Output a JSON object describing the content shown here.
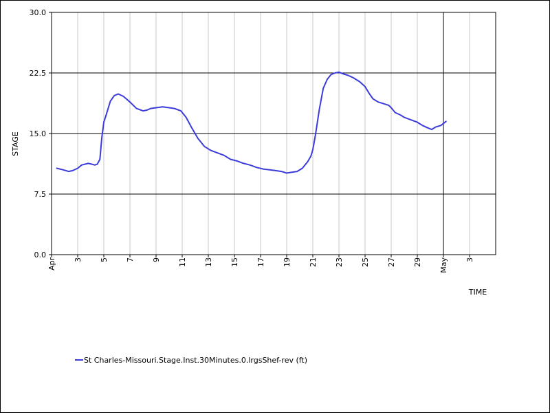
{
  "chart_data": {
    "type": "line",
    "xlabel": "TIME",
    "ylabel": "STAGE",
    "ylim": [
      0,
      30
    ],
    "yticks": [
      "0.0",
      "7.5",
      "15.0",
      "22.5",
      "30.0"
    ],
    "xlim": [
      1,
      35
    ],
    "xticks": [
      {
        "day": 1,
        "label": "Apr"
      },
      {
        "day": 3,
        "label": "3"
      },
      {
        "day": 5,
        "label": "5"
      },
      {
        "day": 7,
        "label": "7"
      },
      {
        "day": 9,
        "label": "9"
      },
      {
        "day": 11,
        "label": "11"
      },
      {
        "day": 13,
        "label": "13"
      },
      {
        "day": 15,
        "label": "15"
      },
      {
        "day": 17,
        "label": "17"
      },
      {
        "day": 19,
        "label": "19"
      },
      {
        "day": 21,
        "label": "21"
      },
      {
        "day": 23,
        "label": "23"
      },
      {
        "day": 25,
        "label": "25"
      },
      {
        "day": 27,
        "label": "27"
      },
      {
        "day": 29,
        "label": "29"
      },
      {
        "day": 31,
        "label": "May"
      },
      {
        "day": 33,
        "label": "3"
      }
    ],
    "major_grid_y": [
      7.5,
      15.0,
      22.5
    ],
    "major_grid_x": [
      31
    ],
    "legend_position": "bottom-left",
    "series": [
      {
        "name": "St Charles-Missouri.Stage.Inst.30Minutes.0.lrgsShef-rev (ft)",
        "color": "#3b3bdc",
        "x": [
          1.4,
          1.9,
          2.3,
          2.6,
          3.0,
          3.3,
          3.8,
          4.1,
          4.3,
          4.5,
          4.7,
          4.85,
          5.0,
          5.2,
          5.5,
          5.8,
          6.1,
          6.5,
          7.0,
          7.5,
          8.0,
          8.3,
          8.6,
          9.0,
          9.5,
          10.0,
          10.4,
          10.9,
          11.3,
          11.7,
          12.2,
          12.7,
          13.2,
          13.7,
          14.2,
          14.7,
          15.2,
          15.7,
          16.2,
          16.7,
          17.2,
          17.7,
          18.2,
          18.6,
          19.0,
          19.4,
          19.8,
          20.2,
          20.6,
          20.85,
          21.0,
          21.2,
          21.5,
          21.8,
          22.1,
          22.4,
          22.7,
          23.0,
          23.3,
          23.7,
          24.1,
          24.6,
          25.0,
          25.3,
          25.6,
          26.0,
          26.4,
          26.8,
          27.0,
          27.3,
          27.7,
          28.0,
          28.5,
          29.0,
          29.4,
          29.8,
          30.1,
          30.4,
          30.8,
          31.2
        ],
        "y": [
          10.7,
          10.5,
          10.3,
          10.4,
          10.7,
          11.1,
          11.3,
          11.2,
          11.1,
          11.2,
          11.8,
          14.5,
          16.4,
          17.4,
          19.0,
          19.7,
          19.9,
          19.6,
          18.9,
          18.1,
          17.8,
          17.9,
          18.1,
          18.2,
          18.3,
          18.2,
          18.1,
          17.8,
          17.0,
          15.8,
          14.4,
          13.4,
          12.9,
          12.6,
          12.3,
          11.8,
          11.6,
          11.3,
          11.1,
          10.8,
          10.6,
          10.5,
          10.4,
          10.3,
          10.1,
          10.2,
          10.3,
          10.7,
          11.5,
          12.2,
          13.0,
          14.8,
          18.0,
          20.6,
          21.7,
          22.3,
          22.5,
          22.6,
          22.4,
          22.2,
          21.9,
          21.4,
          20.8,
          20.0,
          19.3,
          18.9,
          18.7,
          18.5,
          18.2,
          17.6,
          17.3,
          17.0,
          16.7,
          16.4,
          16.0,
          15.7,
          15.5,
          15.8,
          16.0,
          16.5
        ]
      }
    ]
  }
}
